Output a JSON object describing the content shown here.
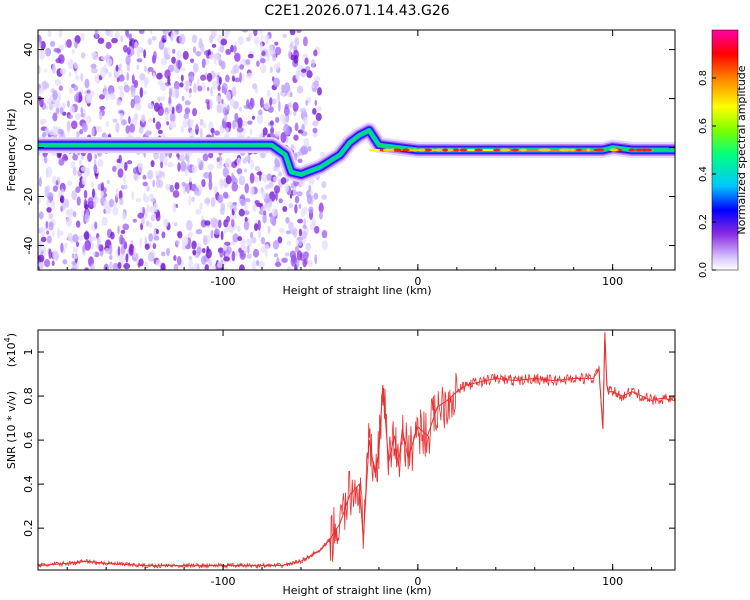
{
  "title": "C2E1.2026.071.14.43.G26",
  "chart_data": [
    {
      "type": "heatmap",
      "name": "spectrogram",
      "xlabel": "Height of straight line (km)",
      "ylabel": "Frequency (Hz)",
      "xlim": [
        -195,
        132
      ],
      "ylim": [
        -50,
        48
      ],
      "xticks": [
        -100,
        0,
        100
      ],
      "yticks": [
        -40,
        -20,
        0,
        20,
        40
      ],
      "colorbar": {
        "label": "Normalized spectral amplitude",
        "range": [
          0.0,
          1.0
        ],
        "ticks": [
          0.0,
          0.2,
          0.4,
          0.6,
          0.8
        ],
        "colors": [
          "#ffffff",
          "#d9c8ff",
          "#8a2be2",
          "#0000ff",
          "#00c8ff",
          "#00ff80",
          "#7cff00",
          "#ffff00",
          "#ff8000",
          "#ff0000",
          "#ff00aa"
        ]
      },
      "ridge": {
        "x": [
          -195,
          -170,
          -150,
          -130,
          -110,
          -90,
          -75,
          -68,
          -65,
          -60,
          -50,
          -40,
          -35,
          -30,
          -25,
          -20,
          -10,
          0,
          40,
          90,
          95,
          100,
          110,
          132
        ],
        "y": [
          1,
          1,
          1,
          1,
          1,
          1,
          1,
          -3,
          -10,
          -11,
          -8,
          -3,
          2,
          5,
          7,
          1,
          0,
          -1,
          -1,
          -1,
          -1,
          0,
          -1,
          -1
        ]
      }
    },
    {
      "type": "line",
      "name": "snr",
      "xlabel": "Height of straight line (km)",
      "ylabel": "SNR (10 * v/v)",
      "yscale_label": "(x10",
      "yscale_exp": "4",
      "yscale_close": ")",
      "xlim": [
        -195,
        132
      ],
      "ylim": [
        0.01,
        1.1
      ],
      "xticks": [
        -100,
        0,
        100
      ],
      "yticks": [
        0.2,
        0.4,
        0.6,
        0.8,
        1
      ],
      "color": "#e83030",
      "x": [
        -195,
        -180,
        -170,
        -160,
        -140,
        -120,
        -100,
        -80,
        -70,
        -60,
        -50,
        -45,
        -40,
        -35,
        -30,
        -28,
        -25,
        -22,
        -20,
        -18,
        -15,
        -12,
        -10,
        -8,
        -5,
        0,
        5,
        10,
        15,
        20,
        25,
        30,
        35,
        40,
        50,
        60,
        70,
        80,
        90,
        93,
        95,
        96,
        97,
        98,
        100,
        105,
        110,
        115,
        120,
        125,
        132
      ],
      "y": [
        0.03,
        0.04,
        0.05,
        0.04,
        0.03,
        0.03,
        0.03,
        0.03,
        0.03,
        0.05,
        0.1,
        0.15,
        0.22,
        0.35,
        0.4,
        0.15,
        0.6,
        0.45,
        0.55,
        0.85,
        0.5,
        0.62,
        0.48,
        0.65,
        0.52,
        0.66,
        0.62,
        0.75,
        0.78,
        0.82,
        0.85,
        0.86,
        0.87,
        0.88,
        0.87,
        0.88,
        0.87,
        0.88,
        0.88,
        0.92,
        0.65,
        1.09,
        0.85,
        0.82,
        0.82,
        0.8,
        0.82,
        0.8,
        0.78,
        0.79,
        0.78
      ]
    }
  ]
}
